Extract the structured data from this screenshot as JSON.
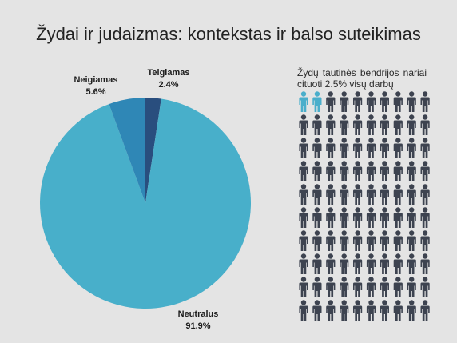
{
  "title": "Žydai ir judaizmas: kontekstas ir balso suteikimas",
  "colors": {
    "background": "#e4e4e4",
    "neutral": "#48afca",
    "negative": "#2f87b6",
    "positive": "#294e7e",
    "icon_highlight": "#4aaecb",
    "icon_default": "#3d4350"
  },
  "chart_data": {
    "type": "pie",
    "slices": [
      {
        "label": "Teigiamas",
        "value": 2.4,
        "display": "2.4%",
        "color": "#294e7e"
      },
      {
        "label": "Neutralus",
        "value": 91.9,
        "display": "91.9%",
        "color": "#48afca"
      },
      {
        "label": "Neigiamas",
        "value": 5.6,
        "display": "5.6%",
        "color": "#2f87b6"
      }
    ],
    "start_angle": "12 o'clock",
    "direction": "clockwise"
  },
  "pictogram": {
    "caption": "Žydų tautinės bendrijos nariai cituoti 2.5% visų darbų",
    "icon": "person-icon",
    "rows": 10,
    "columns": 10,
    "highlighted": 2
  }
}
